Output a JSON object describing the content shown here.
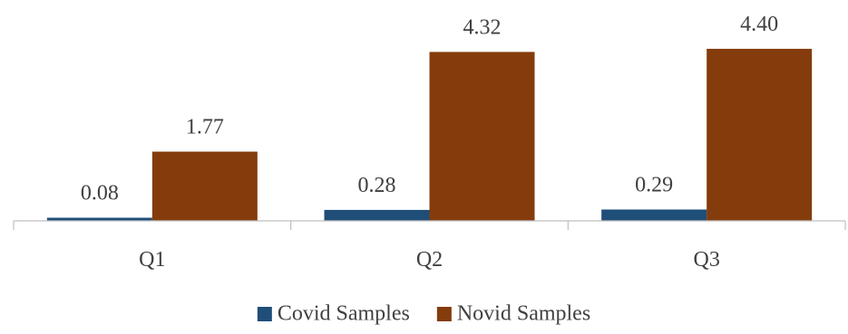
{
  "chart_data": {
    "type": "bar",
    "categories": [
      "Q1",
      "Q2",
      "Q3"
    ],
    "series": [
      {
        "name": "Covid Samples",
        "color": "#1F4E79",
        "values": [
          0.08,
          0.28,
          0.29
        ],
        "labels": [
          "0.08",
          "0.28",
          "0.29"
        ]
      },
      {
        "name": "Novid Samples",
        "color": "#843C0C",
        "values": [
          1.77,
          4.32,
          4.4
        ],
        "labels": [
          "1.77",
          "4.32",
          "4.40"
        ]
      }
    ],
    "title": "",
    "xlabel": "",
    "ylabel": "",
    "ylim": [
      0,
      5
    ],
    "grid": false,
    "legend_position": "bottom"
  }
}
